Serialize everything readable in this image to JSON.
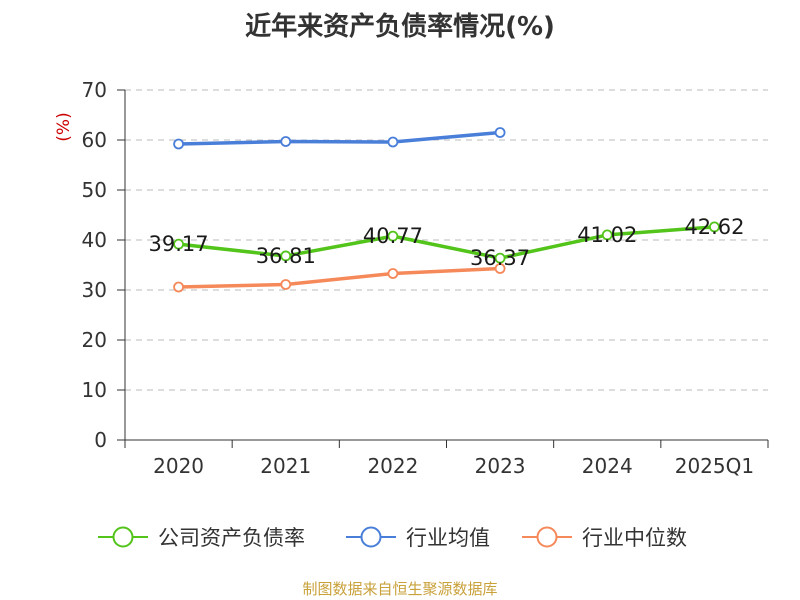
{
  "title": "近年来资产负债率情况(%)",
  "source": "制图数据来自恒生聚源数据库",
  "chart_data": {
    "type": "line",
    "title": "近年来资产负债率情况(%)",
    "ylabel": "(%)",
    "xlabel": "",
    "categories": [
      "2020",
      "2021",
      "2022",
      "2023",
      "2024",
      "2025Q1"
    ],
    "ylim": [
      0,
      70
    ],
    "yticks": [
      0,
      10,
      20,
      30,
      40,
      50,
      60,
      70
    ],
    "grid": true,
    "legend_position": "bottom",
    "series": [
      {
        "name": "公司资产负债率",
        "color": "#52c41a",
        "values": [
          39.17,
          36.81,
          40.77,
          36.37,
          41.02,
          42.62
        ],
        "labels": [
          "39.17",
          "36.81",
          "40.77",
          "36.37",
          "41.02",
          "42.62"
        ]
      },
      {
        "name": "行业均值",
        "color": "#4a7fd9",
        "values": [
          59.2,
          59.7,
          59.6,
          61.5,
          null,
          null
        ]
      },
      {
        "name": "行业中位数",
        "color": "#f5895a",
        "values": [
          30.6,
          31.1,
          33.3,
          34.3,
          null,
          null
        ]
      }
    ]
  }
}
